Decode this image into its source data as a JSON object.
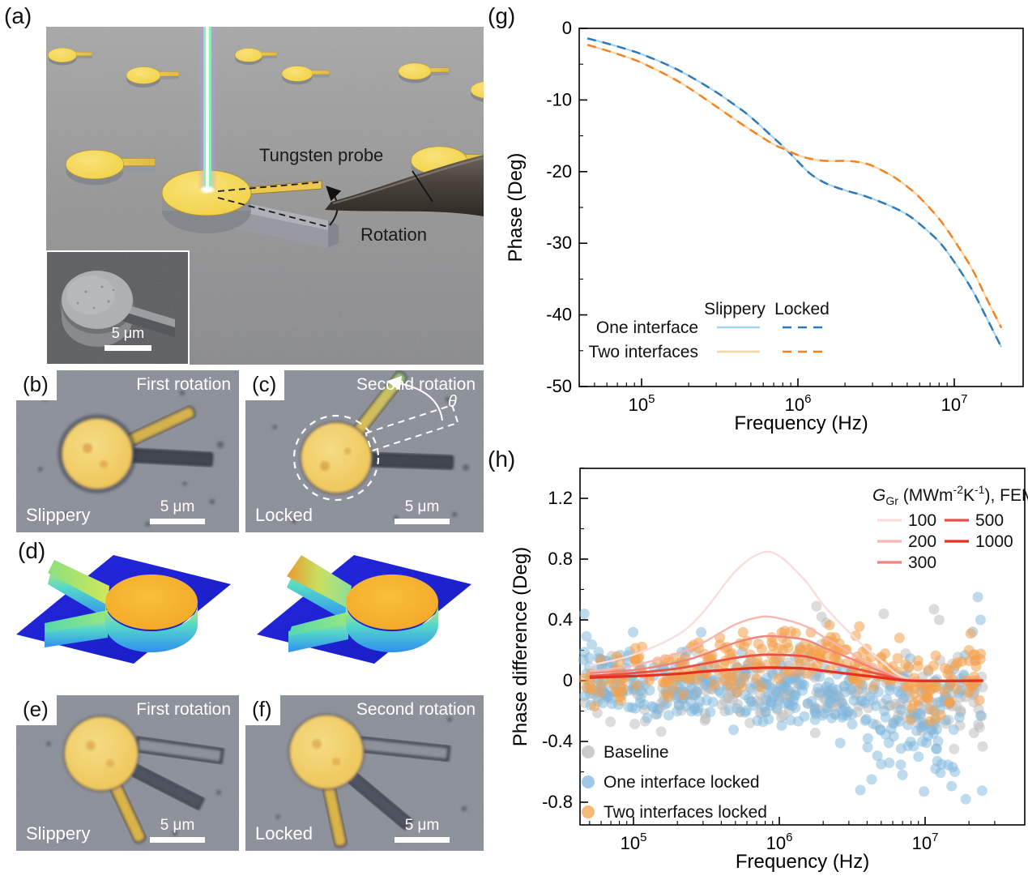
{
  "figure": {
    "panels": {
      "a": {
        "label": "(a)",
        "probe_label": "Tungsten probe",
        "rotation_label": "Rotation",
        "inset_scalebar": "5 μm"
      },
      "b": {
        "label": "(b)",
        "top_right": "First rotation",
        "bottom_left": "Slippery",
        "scalebar": "5 μm"
      },
      "c": {
        "label": "(c)",
        "top_right": "Second rotation",
        "bottom_left": "Locked",
        "scalebar": "5 μm",
        "theta": "θ"
      },
      "d": {
        "label": "(d)"
      },
      "e": {
        "label": "(e)",
        "top_right": "First rotation",
        "bottom_left": "Slippery",
        "scalebar": "5 μm"
      },
      "f": {
        "label": "(f)",
        "top_right": "Second rotation",
        "bottom_left": "Locked",
        "scalebar": "5 μm"
      },
      "g": {
        "label": "(g)"
      },
      "h": {
        "label": "(h)"
      }
    }
  },
  "chart_data": [
    {
      "id": "g",
      "type": "line",
      "xlabel": "Frequency (Hz)",
      "ylabel": "Phase (Deg)",
      "xscale": "log",
      "xlim": [
        40000,
        27500000
      ],
      "ylim": [
        -50,
        0
      ],
      "yticks": [
        0,
        -10,
        -20,
        -30,
        -40,
        -50
      ],
      "ytick_minor_step": 5,
      "xtick_decades": [
        5,
        6,
        7
      ],
      "grid": false,
      "legend": {
        "headers": [
          "Slippery",
          "Locked"
        ],
        "rows": [
          {
            "label": "One interface",
            "solid": "#a5d4f0",
            "dashed": "#2e79b8"
          },
          {
            "label": "Two interfaces",
            "solid": "#fbd6a4",
            "dashed": "#f58220"
          }
        ]
      },
      "series": [
        {
          "name": "One interface",
          "x": [
            45000,
            60000,
            80000,
            100000,
            150000,
            200000,
            300000,
            400000,
            500000,
            700000,
            850000,
            1000000,
            1200000,
            1500000,
            2000000,
            2500000,
            3000000,
            4000000,
            5000000,
            6000000,
            8000000,
            10000000,
            13000000,
            16000000,
            20000000
          ],
          "y": [
            -1.4,
            -2.1,
            -2.9,
            -3.6,
            -5.2,
            -6.6,
            -8.9,
            -10.8,
            -12.4,
            -15.3,
            -17.0,
            -18.6,
            -20.3,
            -21.6,
            -22.6,
            -23.2,
            -23.8,
            -24.9,
            -26.0,
            -27.3,
            -29.8,
            -32.6,
            -36.5,
            -40.3,
            -44.5
          ]
        },
        {
          "name": "Two interfaces",
          "x": [
            45000,
            60000,
            80000,
            100000,
            150000,
            200000,
            300000,
            400000,
            500000,
            700000,
            850000,
            1000000,
            1200000,
            1500000,
            2000000,
            2500000,
            3000000,
            4000000,
            5000000,
            6000000,
            8000000,
            10000000,
            13000000,
            16000000,
            20000000
          ],
          "y": [
            -2.3,
            -3.1,
            -4.0,
            -4.8,
            -6.7,
            -8.3,
            -10.9,
            -12.8,
            -14.2,
            -16.2,
            -17.0,
            -17.7,
            -18.2,
            -18.5,
            -18.5,
            -18.7,
            -19.2,
            -20.6,
            -22.1,
            -23.6,
            -26.6,
            -29.6,
            -33.6,
            -37.6,
            -41.8
          ]
        }
      ]
    },
    {
      "id": "h",
      "type": "scatter",
      "xlabel": "Frequency (Hz)",
      "ylabel": "Phase difference (Deg)",
      "xscale": "log",
      "xlim": [
        41000,
        30000000
      ],
      "ylim": [
        -0.95,
        1.4
      ],
      "yticks": [
        1.2,
        0.8,
        0.4,
        0,
        -0.4,
        -0.8
      ],
      "ytick_minor_step": 0.2,
      "xtick_decades": [
        5,
        6,
        7
      ],
      "grid": false,
      "fem_legend": {
        "title_parts": [
          [
            "i",
            "G"
          ],
          [
            "sub",
            "Gr"
          ],
          [
            "n",
            " (MWm"
          ],
          [
            "sup",
            "-2"
          ],
          [
            "n",
            "K"
          ],
          [
            "sup",
            "-1"
          ],
          [
            "n",
            "), FEM"
          ]
        ],
        "columns": [
          [
            "100",
            "200",
            "300"
          ],
          [
            "500",
            "1000"
          ]
        ]
      },
      "fem_curves": [
        {
          "label": "100",
          "color": "#fbdcdb",
          "x": [
            50000,
            100000,
            200000,
            300000,
            500000,
            750000,
            1000000,
            1500000,
            2000000,
            3000000,
            5000000,
            8000000,
            25000000
          ],
          "y": [
            0.1,
            0.17,
            0.3,
            0.45,
            0.72,
            0.84,
            0.82,
            0.66,
            0.5,
            0.32,
            0.13,
            0.01,
            0.0
          ]
        },
        {
          "label": "200",
          "color": "#f8b6b2",
          "x": [
            50000,
            100000,
            200000,
            300000,
            500000,
            750000,
            1000000,
            1500000,
            2000000,
            3000000,
            5000000,
            8000000,
            25000000
          ],
          "y": [
            0.06,
            0.1,
            0.18,
            0.25,
            0.37,
            0.42,
            0.41,
            0.36,
            0.29,
            0.19,
            0.07,
            0.01,
            0.0
          ]
        },
        {
          "label": "300",
          "color": "#f1837d",
          "x": [
            50000,
            100000,
            200000,
            300000,
            500000,
            750000,
            1000000,
            1500000,
            2000000,
            3000000,
            5000000,
            8000000,
            25000000
          ],
          "y": [
            0.05,
            0.07,
            0.12,
            0.17,
            0.25,
            0.29,
            0.29,
            0.27,
            0.22,
            0.15,
            0.06,
            0.0,
            0.0
          ]
        },
        {
          "label": "500",
          "color": "#ec4f45",
          "x": [
            50000,
            100000,
            200000,
            300000,
            500000,
            750000,
            1000000,
            1500000,
            2000000,
            3000000,
            5000000,
            8000000,
            25000000
          ],
          "y": [
            0.03,
            0.05,
            0.08,
            0.11,
            0.15,
            0.17,
            0.17,
            0.16,
            0.13,
            0.09,
            0.04,
            0.0,
            0.0
          ]
        },
        {
          "label": "1000",
          "color": "#e62e21",
          "x": [
            50000,
            100000,
            200000,
            300000,
            500000,
            750000,
            1000000,
            1500000,
            2000000,
            3000000,
            5000000,
            8000000,
            25000000
          ],
          "y": [
            0.02,
            0.03,
            0.045,
            0.06,
            0.075,
            0.085,
            0.085,
            0.08,
            0.065,
            0.045,
            0.02,
            0.0,
            0.0
          ]
        }
      ],
      "scatter_series": [
        {
          "name": "Baseline",
          "color": "#b9b9b9",
          "opacity": 0.5,
          "n": 280,
          "seed": 11,
          "std": 0.11,
          "std_growth": 0.5,
          "trend": [
            [
              45000,
              -0.02
            ],
            [
              200000,
              -0.05
            ],
            [
              1000000,
              -0.07
            ],
            [
              4000000,
              -0.12
            ],
            [
              25000000,
              -0.13
            ]
          ],
          "outliers": [
            [
              1800000,
              0.49
            ],
            [
              1950000,
              0.42
            ],
            [
              2100000,
              0.38
            ],
            [
              11500000,
              0.47
            ],
            [
              12500000,
              0.4
            ],
            [
              5200000,
              0.44
            ]
          ]
        },
        {
          "name": "One interface locked",
          "color": "#7eb6dc",
          "opacity": 0.5,
          "n": 360,
          "seed": 23,
          "std": 0.12,
          "std_growth": 1.1,
          "trend": [
            [
              45000,
              0.0
            ],
            [
              300000,
              -0.04
            ],
            [
              1000000,
              -0.05
            ],
            [
              3000000,
              -0.14
            ],
            [
              10000000,
              -0.27
            ],
            [
              25000000,
              -0.25
            ]
          ],
          "outliers": [
            [
              46000,
              0.44
            ],
            [
              3600000,
              -0.72
            ],
            [
              4300000,
              -0.65
            ],
            [
              5000000,
              -0.55
            ],
            [
              7000000,
              -0.62
            ],
            [
              9000000,
              -0.5
            ],
            [
              12000000,
              -0.45
            ],
            [
              13000000,
              -0.55
            ],
            [
              16000000,
              -0.6
            ],
            [
              19000000,
              -0.78
            ],
            [
              23000000,
              0.55
            ],
            [
              24000000,
              0.4
            ]
          ]
        },
        {
          "name": "Two interfaces locked",
          "color": "#f4a14b",
          "opacity": 0.55,
          "n": 280,
          "seed": 37,
          "std": 0.085,
          "std_growth": 0.6,
          "trend": [
            [
              45000,
              0.02
            ],
            [
              200000,
              0.07
            ],
            [
              600000,
              0.13
            ],
            [
              1500000,
              0.2
            ],
            [
              3000000,
              0.16
            ],
            [
              7000000,
              0.02
            ],
            [
              12000000,
              -0.05
            ],
            [
              25000000,
              0.08
            ]
          ],
          "outliers": [
            [
              20000000,
              0.2
            ],
            [
              22000000,
              0.17
            ]
          ]
        }
      ]
    }
  ]
}
